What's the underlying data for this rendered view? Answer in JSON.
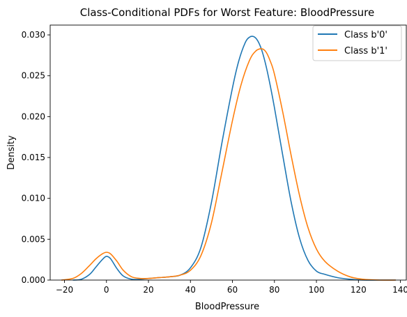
{
  "chart_data": {
    "type": "line",
    "title": "Class-Conditional PDFs for Worst Feature: BloodPressure",
    "xlabel": "BloodPressure",
    "ylabel": "Density",
    "xlim": [
      -26.8,
      142.8
    ],
    "ylim": [
      0,
      0.0312
    ],
    "xticks": [
      "−20",
      "0",
      "20",
      "40",
      "60",
      "80",
      "100",
      "120",
      "140"
    ],
    "xtick_values": [
      -20,
      0,
      20,
      40,
      60,
      80,
      100,
      120,
      140
    ],
    "yticks": [
      "0.000",
      "0.005",
      "0.010",
      "0.015",
      "0.020",
      "0.025",
      "0.030"
    ],
    "ytick_values": [
      0,
      0.005,
      0.01,
      0.015,
      0.02,
      0.025,
      0.03
    ],
    "grid": false,
    "legend_position": "top-right",
    "series": [
      {
        "name": "Class b'0'",
        "color": "#1f77b4",
        "x": [
          -16,
          -12,
          -8,
          -5,
          -2,
          0,
          2,
          5,
          8,
          12,
          16,
          20,
          25,
          30,
          35,
          40,
          45,
          50,
          55,
          60,
          63,
          66,
          68,
          70,
          72,
          74,
          76,
          78,
          80,
          84,
          88,
          92,
          96,
          100,
          104,
          110,
          116,
          122,
          130,
          137.8
        ],
        "values": [
          0.0,
          0.0001,
          0.0007,
          0.0016,
          0.0025,
          0.0029,
          0.0026,
          0.0014,
          0.0005,
          0.0001,
          0.0001,
          0.0002,
          0.0003,
          0.0004,
          0.0006,
          0.0015,
          0.004,
          0.0095,
          0.0168,
          0.0235,
          0.0268,
          0.029,
          0.0297,
          0.0298,
          0.0293,
          0.0281,
          0.0262,
          0.0238,
          0.0211,
          0.0152,
          0.0095,
          0.0051,
          0.0024,
          0.0011,
          0.0007,
          0.0003,
          0.0001,
          0.0,
          0.0,
          0.0
        ]
      },
      {
        "name": "Class b'1'",
        "color": "#ff7f0e",
        "x": [
          -21.5,
          -16,
          -12,
          -8,
          -5,
          -2,
          0,
          2,
          5,
          8,
          12,
          16,
          20,
          25,
          30,
          35,
          40,
          45,
          50,
          55,
          60,
          64,
          68,
          71,
          74,
          76,
          78,
          80,
          84,
          88,
          92,
          96,
          100,
          104,
          110,
          116,
          122,
          130,
          137.8
        ],
        "values": [
          0.0,
          0.0002,
          0.0008,
          0.0018,
          0.0026,
          0.0032,
          0.0034,
          0.0032,
          0.0023,
          0.0012,
          0.0004,
          0.0002,
          0.0002,
          0.0003,
          0.0004,
          0.0006,
          0.0012,
          0.003,
          0.007,
          0.0132,
          0.0195,
          0.0238,
          0.0268,
          0.028,
          0.0283,
          0.0279,
          0.0268,
          0.0252,
          0.0205,
          0.0152,
          0.0103,
          0.0064,
          0.0038,
          0.0023,
          0.0011,
          0.0004,
          0.0001,
          0.0,
          0.0
        ]
      }
    ]
  }
}
